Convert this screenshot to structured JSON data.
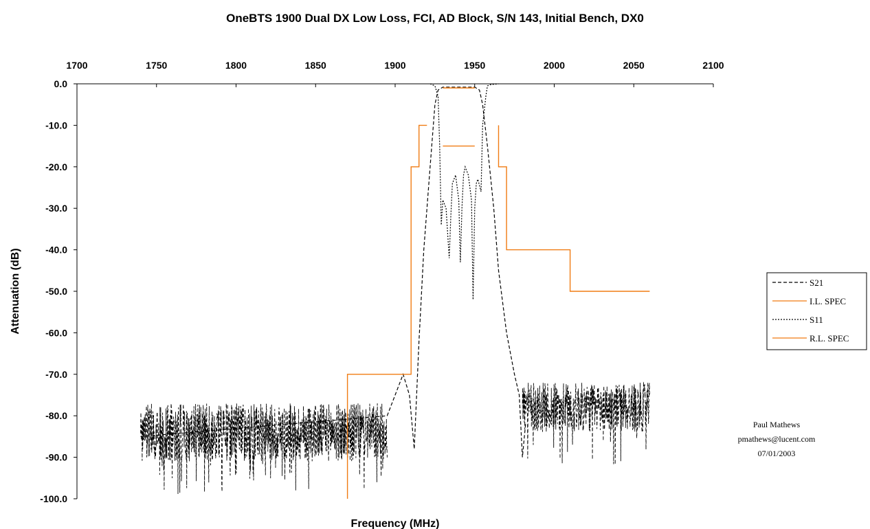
{
  "chart_data": {
    "type": "line",
    "title": "OneBTS 1900 Dual DX Low Loss, FCI, AD Block, S/N 143, Initial Bench, DX0",
    "xlabel": "Frequency (MHz)",
    "ylabel": "Attenuation (dB)",
    "xlim": [
      1700,
      2100
    ],
    "ylim": [
      -100,
      0
    ],
    "x_ticks": [
      "1700",
      "1750",
      "1800",
      "1850",
      "1900",
      "1950",
      "2000",
      "2050",
      "2100"
    ],
    "y_ticks": [
      "0.0",
      "-10.0",
      "-20.0",
      "-30.0",
      "-40.0",
      "-50.0",
      "-60.0",
      "-70.0",
      "-80.0",
      "-90.0",
      "-100.0"
    ],
    "x_axis_position": "top",
    "grid": false,
    "legend_position": "right",
    "series": [
      {
        "name": "S21",
        "color": "#000000",
        "style": "dashed",
        "noise_floor": {
          "low_band": {
            "x_range": [
              1740,
              1895
            ],
            "mean": -84,
            "spread": 7
          },
          "high_band": {
            "x_range": [
              1980,
              2060
            ],
            "mean": -78,
            "spread": 6
          }
        },
        "x": [
          1740,
          1895,
          1900,
          1905,
          1909,
          1912,
          1915,
          1918,
          1922,
          1925,
          1927,
          1930,
          1950,
          1953,
          1955,
          1958,
          1962,
          1965,
          1970,
          1975,
          1978,
          1980,
          1982
        ],
        "y": [
          -85,
          -80,
          -75,
          -70,
          -75,
          -88,
          -62,
          -40,
          -20,
          -5,
          -1.5,
          -0.8,
          -0.8,
          -1.5,
          -5,
          -15,
          -30,
          -45,
          -60,
          -70,
          -75,
          -90,
          -82
        ]
      },
      {
        "name": "I.L. SPEC",
        "color": "#f07b12",
        "style": "solid",
        "x": [
          1930,
          1950
        ],
        "y": [
          -1,
          -1
        ]
      },
      {
        "name": "S11",
        "color": "#000000",
        "style": "dotted",
        "x": [
          1922,
          1925,
          1927,
          1928,
          1929,
          1930,
          1932,
          1934,
          1935,
          1936,
          1938,
          1940,
          1941,
          1942,
          1943,
          1944,
          1946,
          1948,
          1949,
          1950,
          1951,
          1952,
          1954,
          1955,
          1957,
          1958,
          1960,
          1965
        ],
        "y": [
          0,
          -0.5,
          -3,
          -15,
          -34,
          -28,
          -30,
          -42,
          -32,
          -24,
          -22,
          -28,
          -43,
          -30,
          -22,
          -20,
          -22,
          -28,
          -52,
          -30,
          -24,
          -23,
          -26,
          -10,
          -3,
          -0.5,
          -0.2,
          0
        ]
      },
      {
        "name": "R.L. SPEC",
        "color": "#f07b12",
        "style": "solid",
        "segments": [
          {
            "x": [
              1870,
              1870,
              1910,
              1910,
              1915,
              1915,
              1920
            ],
            "y": [
              -100,
              -70,
              -70,
              -20,
              -20,
              -10,
              -10
            ]
          },
          {
            "x": [
              1930,
              1950
            ],
            "y": [
              -15,
              -15
            ]
          },
          {
            "x": [
              1965,
              1965,
              1970,
              1970,
              2010,
              2010,
              2060
            ],
            "y": [
              -10,
              -20,
              -20,
              -40,
              -40,
              -50,
              -50
            ]
          }
        ]
      }
    ]
  },
  "note": {
    "name": "Paul Mathews",
    "email": "pmathews@lucent.com",
    "date": "07/01/2003"
  }
}
